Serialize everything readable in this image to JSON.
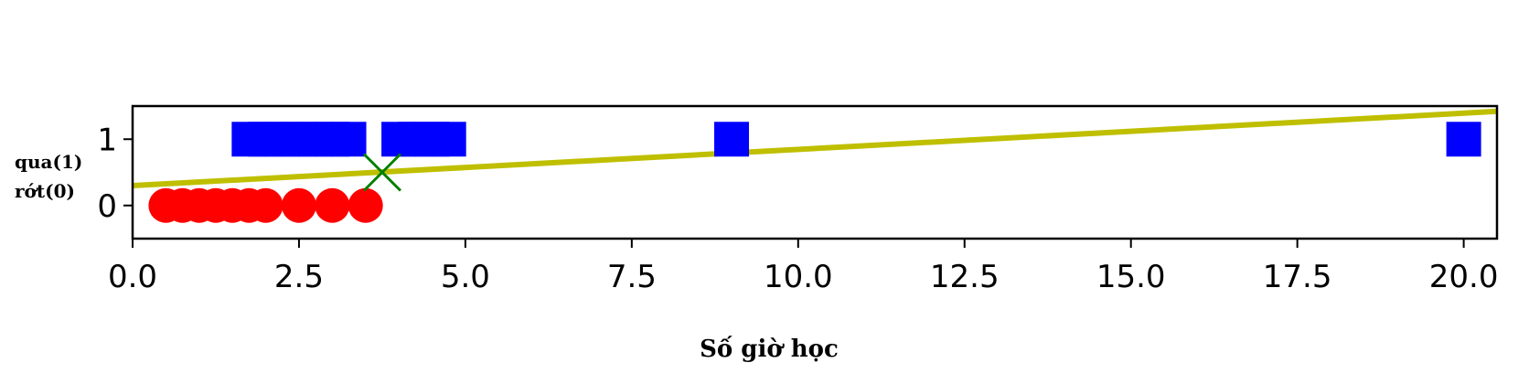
{
  "chart_data": {
    "type": "scatter",
    "title": "",
    "xlabel": "Số giờ học",
    "ylabel_lines": [
      "qua(1)",
      "rớt(0)"
    ],
    "xlim": [
      0,
      20.5
    ],
    "ylim": [
      -0.5,
      1.5
    ],
    "x_ticks": [
      0,
      2.5,
      5,
      7.5,
      10,
      12.5,
      15,
      17.5,
      20
    ],
    "x_tick_labels": [
      "0.0",
      "2.5",
      "5.0",
      "7.5",
      "10.0",
      "12.5",
      "15.0",
      "17.5",
      "20.0"
    ],
    "y_ticks": [
      0,
      1
    ],
    "y_tick_labels": [
      "0",
      "1"
    ],
    "grid": false,
    "series": [
      {
        "marker": "circle",
        "color": "#ff0000",
        "points": [
          [
            0.5,
            0
          ],
          [
            0.75,
            0
          ],
          [
            1.0,
            0
          ],
          [
            1.25,
            0
          ],
          [
            1.5,
            0
          ],
          [
            1.75,
            0
          ],
          [
            2.0,
            0
          ],
          [
            2.5,
            0
          ],
          [
            3.0,
            0
          ],
          [
            3.5,
            0
          ]
        ]
      },
      {
        "marker": "square",
        "color": "#0000ff",
        "points": [
          [
            1.75,
            1
          ],
          [
            2.0,
            1
          ],
          [
            2.25,
            1
          ],
          [
            2.5,
            1
          ],
          [
            2.75,
            1
          ],
          [
            3.0,
            1
          ],
          [
            3.25,
            1
          ],
          [
            4.0,
            1
          ],
          [
            4.25,
            1
          ],
          [
            4.5,
            1
          ],
          [
            4.75,
            1
          ],
          [
            9.0,
            1
          ],
          [
            20.0,
            1
          ]
        ]
      },
      {
        "marker": "x",
        "color": "#008000",
        "points": [
          [
            3.75,
            0.5
          ]
        ]
      }
    ],
    "line": {
      "color": "#bfbf00",
      "points": [
        [
          0,
          0.3
        ],
        [
          20.5,
          1.42
        ]
      ]
    }
  }
}
